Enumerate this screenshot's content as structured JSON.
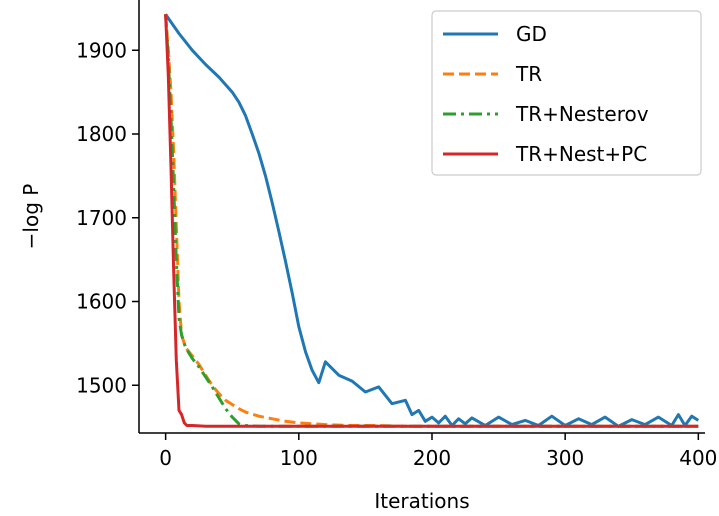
{
  "chart_data": {
    "type": "line",
    "xlabel": "Iterations",
    "ylabel": "−log P",
    "xlim": [
      -20,
      405
    ],
    "ylim": [
      1443,
      1960
    ],
    "xticks": [
      0,
      100,
      200,
      300,
      400
    ],
    "yticks": [
      1500,
      1600,
      1700,
      1800,
      1900
    ],
    "grid": false,
    "legend_position": "top-right",
    "series": [
      {
        "name": "GD",
        "color": "#1f77b4",
        "dash": "solid",
        "x": [
          0,
          3,
          10,
          20,
          30,
          40,
          50,
          55,
          60,
          65,
          70,
          75,
          80,
          85,
          90,
          95,
          100,
          105,
          110,
          115,
          120,
          130,
          140,
          150,
          160,
          170,
          180,
          185,
          190,
          195,
          200,
          205,
          210,
          215,
          220,
          225,
          230,
          240,
          250,
          260,
          270,
          280,
          290,
          300,
          310,
          320,
          330,
          340,
          350,
          360,
          370,
          380,
          385,
          390,
          395,
          400
        ],
        "y": [
          1943,
          1936,
          1920,
          1900,
          1883,
          1868,
          1850,
          1838,
          1822,
          1800,
          1777,
          1750,
          1718,
          1684,
          1648,
          1610,
          1570,
          1540,
          1518,
          1503,
          1528,
          1512,
          1505,
          1492,
          1498,
          1478,
          1482,
          1465,
          1470,
          1457,
          1462,
          1455,
          1463,
          1452,
          1460,
          1454,
          1461,
          1452,
          1462,
          1453,
          1458,
          1452,
          1463,
          1452,
          1460,
          1453,
          1462,
          1451,
          1459,
          1453,
          1462,
          1452,
          1465,
          1452,
          1463,
          1458
        ]
      },
      {
        "name": "TR",
        "color": "#ff7f0e",
        "dash": "dashed",
        "x": [
          0,
          2,
          4,
          6,
          8,
          10,
          12,
          15,
          20,
          25,
          30,
          35,
          40,
          45,
          50,
          55,
          60,
          70,
          80,
          90,
          100,
          110,
          120,
          140,
          160,
          180,
          200,
          250,
          300,
          350,
          400
        ],
        "y": [
          1943,
          1900,
          1850,
          1780,
          1690,
          1600,
          1560,
          1545,
          1535,
          1525,
          1512,
          1500,
          1490,
          1482,
          1477,
          1472,
          1468,
          1463,
          1460,
          1457,
          1455,
          1454,
          1453,
          1452,
          1452,
          1451,
          1451,
          1451,
          1451,
          1451,
          1451
        ]
      },
      {
        "name": "TR+Nesterov",
        "color": "#2ca02c",
        "dash": "dashdot",
        "x": [
          0,
          2,
          4,
          6,
          8,
          10,
          12,
          15,
          20,
          25,
          30,
          35,
          40,
          45,
          50,
          55,
          60,
          70,
          80,
          100,
          150,
          200,
          250,
          300,
          350,
          400
        ],
        "y": [
          1943,
          1890,
          1820,
          1740,
          1650,
          1580,
          1560,
          1545,
          1532,
          1522,
          1510,
          1498,
          1485,
          1472,
          1462,
          1454,
          1452,
          1451,
          1451,
          1451,
          1451,
          1451,
          1451,
          1451,
          1451,
          1451
        ]
      },
      {
        "name": "TR+Nest+PC",
        "color": "#d62728",
        "dash": "solid",
        "x": [
          0,
          2,
          4,
          6,
          8,
          10,
          12,
          14,
          16,
          20,
          30,
          50,
          100,
          200,
          300,
          400
        ],
        "y": [
          1943,
          1870,
          1760,
          1640,
          1530,
          1470,
          1465,
          1455,
          1452,
          1452,
          1451,
          1451,
          1451,
          1451,
          1451,
          1451
        ]
      }
    ]
  }
}
